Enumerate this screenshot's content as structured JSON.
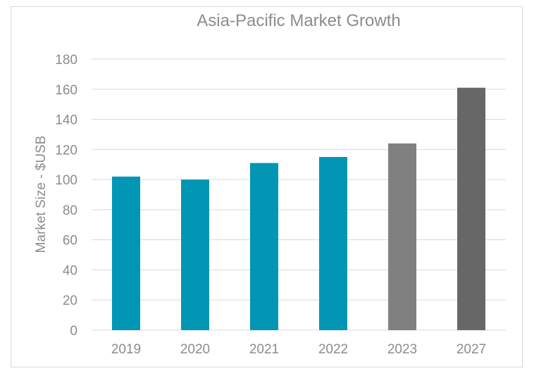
{
  "chart_data": {
    "type": "bar",
    "title": "Asia-Pacific Market Growth",
    "xlabel": "",
    "ylabel": "Market Size - $USB",
    "categories": [
      "2019",
      "2020",
      "2021",
      "2022",
      "2023",
      "2027"
    ],
    "values": [
      102,
      100,
      111,
      115,
      124,
      161
    ],
    "ylim": [
      0,
      180
    ],
    "yticks": [
      "0",
      "20",
      "40",
      "60",
      "80",
      "100",
      "120",
      "140",
      "160",
      "180"
    ],
    "grid": true,
    "colors": {
      "primary": "#0096b4",
      "projected_2023": "#808080",
      "projected_2027": "#666766"
    }
  }
}
